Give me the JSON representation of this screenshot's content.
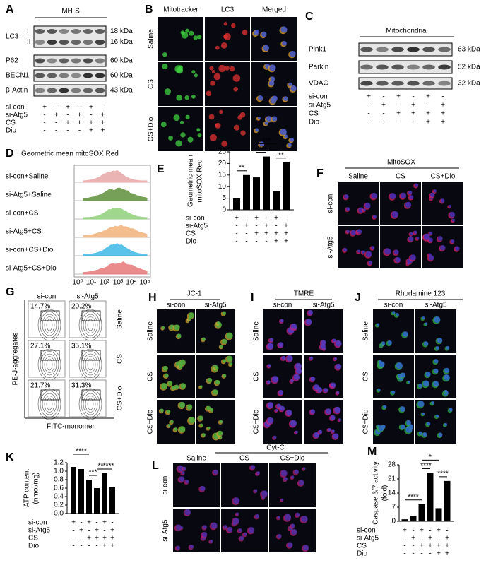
{
  "panels": {
    "A": {
      "letter": "A",
      "title": "MH-S",
      "blots": [
        {
          "label": "LC3",
          "sublabels": [
            "I",
            "II"
          ],
          "sizes": [
            "18 kDa",
            "16 kDa"
          ]
        },
        {
          "label": "P62",
          "sizes": [
            "60 kDa"
          ]
        },
        {
          "label": "BECN1",
          "sizes": [
            "60 kDa"
          ]
        },
        {
          "label": "β-Actin",
          "sizes": [
            "43 kDa"
          ]
        }
      ],
      "conditions": [
        {
          "name": "si-con",
          "signs": [
            "+",
            "-",
            "+",
            "-",
            "+",
            "-"
          ]
        },
        {
          "name": "si-Atg5",
          "signs": [
            "-",
            "+",
            "-",
            "+",
            "-",
            "+"
          ]
        },
        {
          "name": "CS",
          "signs": [
            "-",
            "-",
            "+",
            "+",
            "+",
            "+"
          ]
        },
        {
          "name": "Dio",
          "signs": [
            "-",
            "-",
            "-",
            "-",
            "+",
            "+"
          ]
        }
      ]
    },
    "B": {
      "letter": "B",
      "columns": [
        "Mitotracker",
        "LC3",
        "Merged"
      ],
      "rows": [
        "Saline",
        "CS",
        "CS+Dio"
      ]
    },
    "C": {
      "letter": "C",
      "title": "Mitochondria",
      "blots": [
        {
          "label": "Pink1",
          "sizes": [
            "63 kDa"
          ]
        },
        {
          "label": "Parkin",
          "sizes": [
            "52 kDa"
          ]
        },
        {
          "label": "VDAC",
          "sizes": [
            "32 kDa"
          ]
        }
      ],
      "conditions": [
        {
          "name": "si-con",
          "signs": [
            "+",
            "-",
            "+",
            "-",
            "+",
            "-"
          ]
        },
        {
          "name": "si-Atg5",
          "signs": [
            "-",
            "+",
            "-",
            "+",
            "-",
            "+"
          ]
        },
        {
          "name": "CS",
          "signs": [
            "-",
            "-",
            "+",
            "+",
            "+",
            "+"
          ]
        },
        {
          "name": "Dio",
          "signs": [
            "-",
            "-",
            "-",
            "-",
            "+",
            "+"
          ]
        }
      ]
    },
    "D": {
      "letter": "D",
      "title": "Geometric mean mitoSOX Red",
      "rows": [
        {
          "label": "si-con+Saline",
          "color": "#e8a7a7"
        },
        {
          "label": "si-Atg5+Saline",
          "color": "#5f8f3a"
        },
        {
          "label": "si-con+CS",
          "color": "#8fd17a"
        },
        {
          "label": "si-Atg5+CS",
          "color": "#f2b27a"
        },
        {
          "label": "si-con+CS+Dio",
          "color": "#3fb9e6"
        },
        {
          "label": "si-Atg5+CS+Dio",
          "color": "#e87878"
        }
      ],
      "xticks": [
        "10⁰",
        "10¹",
        "10²",
        "10³",
        "10⁴",
        "10⁵"
      ]
    },
    "E": {
      "letter": "E",
      "type": "bar",
      "ylabel_lines": [
        "Geometric mean",
        "mitoSOX Red"
      ],
      "color": "#000000",
      "values": [
        5,
        15,
        14,
        23,
        8,
        20.5
      ],
      "ylim": [
        0,
        25
      ],
      "yticks": [
        0,
        5,
        10,
        15,
        20,
        25
      ],
      "annotations": [
        "**",
        "**",
        "***",
        "**"
      ],
      "conditions": [
        {
          "name": "si-con",
          "signs": [
            "+",
            "-",
            "+",
            "-",
            "+",
            "-"
          ]
        },
        {
          "name": "si-Atg5",
          "signs": [
            "-",
            "+",
            "-",
            "+",
            "-",
            "+"
          ]
        },
        {
          "name": "CS",
          "signs": [
            "-",
            "-",
            "+",
            "+",
            "+",
            "+"
          ]
        },
        {
          "name": "Dio",
          "signs": [
            "-",
            "-",
            "-",
            "-",
            "+",
            "+"
          ]
        }
      ]
    },
    "F": {
      "letter": "F",
      "title": "MitoSOX",
      "columns": [
        "Saline",
        "CS",
        "CS+Dio"
      ],
      "rows": [
        "si-con",
        "si-Atg5"
      ]
    },
    "G": {
      "letter": "G",
      "columns": [
        "si-con",
        "si-Atg5"
      ],
      "rows": [
        "Saline",
        "CS",
        "CS+Dio"
      ],
      "percentages": [
        [
          "14.7%",
          "20.2%"
        ],
        [
          "27.1%",
          "35.1%"
        ],
        [
          "21.7%",
          "31.3%"
        ]
      ],
      "ylabel": "PE-J-aggregates",
      "xlabel": "FITC-monomer"
    },
    "H": {
      "letter": "H",
      "title": "JC-1",
      "columns": [
        "si-con",
        "si-Atg5"
      ],
      "rows": [
        "Saline",
        "CS",
        "CS+Dio"
      ]
    },
    "I": {
      "letter": "I",
      "title": "TMRE",
      "columns": [
        "si-con",
        "si-Atg5"
      ],
      "rows": [
        "Saline",
        "CS",
        "CS+Dio"
      ]
    },
    "J": {
      "letter": "J",
      "title": "Rhodamine 123",
      "columns": [
        "si-con",
        "si-Atg5"
      ],
      "rows": [
        "Saline",
        "CS",
        "CS+Dio"
      ]
    },
    "K": {
      "letter": "K",
      "type": "bar",
      "ylabel_lines": [
        "ATP content",
        "(nmol/mg)"
      ],
      "color": "#000000",
      "values": [
        1.1,
        1.05,
        0.8,
        0.6,
        0.95,
        0.63
      ],
      "ylim": [
        0,
        1.2
      ],
      "yticks": [
        {
          "value": 0,
          "label": "0.0"
        },
        0.2,
        0.4,
        0.6,
        0.8,
        {
          "value": 1,
          "label": "1.0"
        },
        1.2
      ],
      "annotations": [
        "****",
        "***",
        "**",
        "****"
      ],
      "conditions": [
        {
          "name": "si-con",
          "signs": [
            "+",
            "-",
            "+",
            "-",
            "+",
            "-"
          ]
        },
        {
          "name": "si-Atg5",
          "signs": [
            "-",
            "+",
            "-",
            "+",
            "-",
            "+"
          ]
        },
        {
          "name": "CS",
          "signs": [
            "-",
            "-",
            "+",
            "+",
            "+",
            "+"
          ]
        },
        {
          "name": "Dio",
          "signs": [
            "-",
            "-",
            "-",
            "-",
            "+",
            "+"
          ]
        }
      ]
    },
    "L": {
      "letter": "L",
      "title": "Cyt-C",
      "columns": [
        "Saline",
        "CS",
        "CS+Dio"
      ],
      "rows": [
        "si-con",
        "si-Atg5"
      ]
    },
    "M": {
      "letter": "M",
      "type": "bar",
      "ylabel_lines": [
        "Caspase 3/7  activity",
        "(fold)"
      ],
      "color": "#000000",
      "values": [
        1,
        2.5,
        8.5,
        24,
        6.5,
        20
      ],
      "ylim": [
        0,
        28
      ],
      "yticks": [
        0,
        7,
        14,
        21,
        28
      ],
      "annotations": [
        "*",
        "****",
        "****",
        "****"
      ],
      "conditions": [
        {
          "name": "si-con",
          "signs": [
            "+",
            "-",
            "+",
            "-",
            "+",
            "-"
          ]
        },
        {
          "name": "si-Atg5",
          "signs": [
            "-",
            "+",
            "-",
            "+",
            "-",
            "+"
          ]
        },
        {
          "name": "CS",
          "signs": [
            "-",
            "-",
            "+",
            "+",
            "+",
            "+"
          ]
        },
        {
          "name": "Dio",
          "signs": [
            "-",
            "-",
            "-",
            "-",
            "+",
            "+"
          ]
        }
      ]
    }
  }
}
